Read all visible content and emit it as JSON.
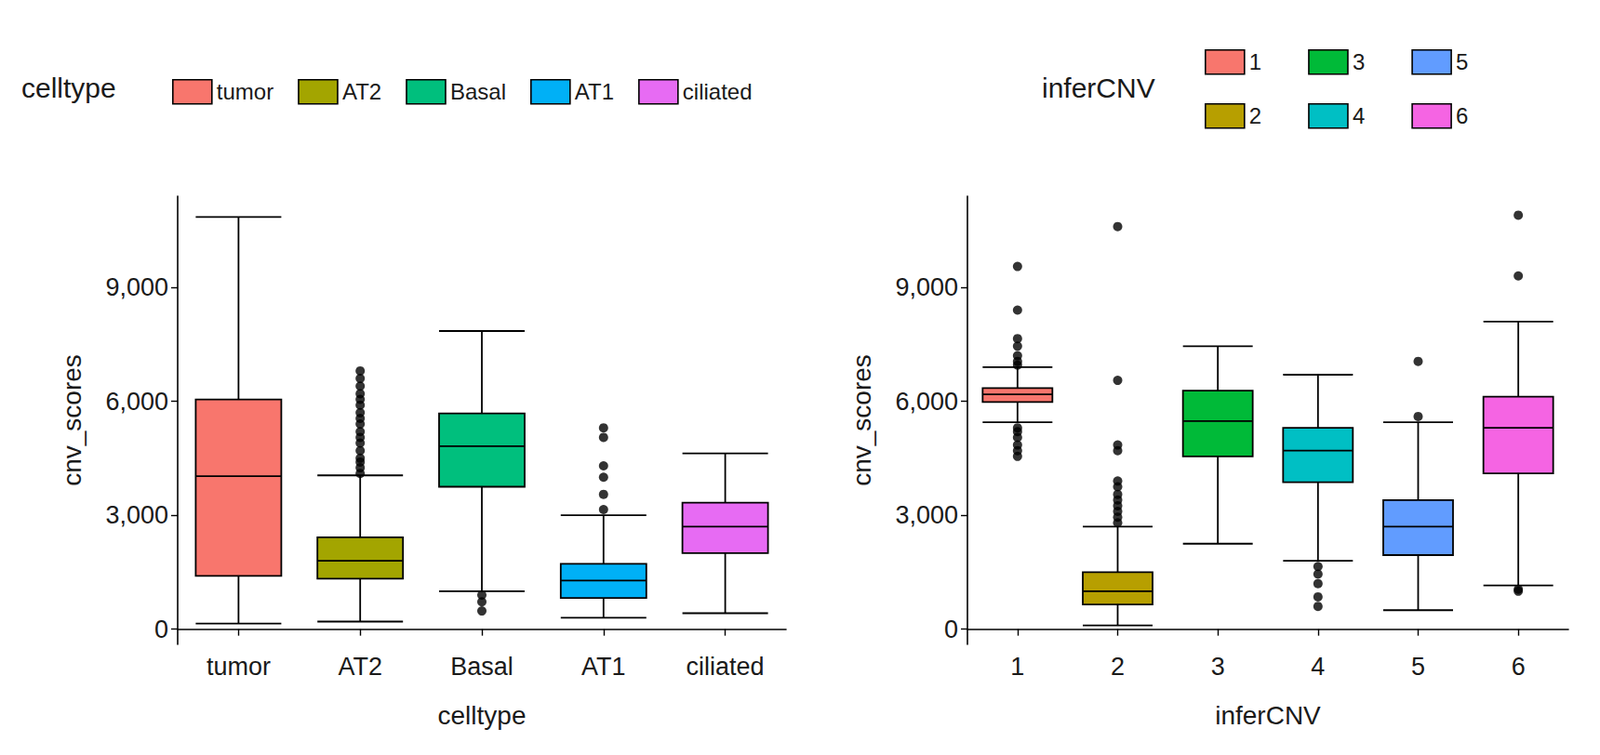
{
  "chart_data": [
    {
      "type": "boxplot",
      "x_label": "celltype",
      "y_label": "cnv_scores",
      "legend_title": "celltype",
      "legend": "top",
      "categories": [
        "tumor",
        "AT2",
        "Basal",
        "AT1",
        "ciliated"
      ],
      "colors": [
        "#F8766D",
        "#A3A500",
        "#00BF7D",
        "#00B0F6",
        "#E76BF3"
      ],
      "values": [
        [
          150,
          1400,
          4030,
          6050,
          10850
        ],
        [
          200,
          1330,
          1800,
          2420,
          4050
        ],
        [
          1000,
          3750,
          4820,
          5680,
          7850
        ],
        [
          300,
          820,
          1280,
          1720,
          3000
        ],
        [
          420,
          2000,
          2700,
          3330,
          4630
        ]
      ],
      "outliers": [
        [],
        [
          4100,
          4250,
          4400,
          4500,
          4700,
          4900,
          5050,
          5200,
          5400,
          5550,
          5700,
          5900,
          6050,
          6200,
          6400,
          6600,
          6800
        ],
        [
          900,
          720,
          480
        ],
        [
          3150,
          3550,
          4000,
          4300,
          5050,
          5300
        ],
        []
      ],
      "ylim": [
        -400,
        11400
      ],
      "yticks": [
        0,
        3000,
        6000,
        9000
      ]
    },
    {
      "type": "boxplot",
      "x_label": "inferCNV",
      "y_label": "cnv_scores",
      "legend_title": "inferCNV",
      "legend": "top",
      "categories": [
        "1",
        "2",
        "3",
        "4",
        "5",
        "6"
      ],
      "colors": [
        "#F8766D",
        "#B79F00",
        "#00BA38",
        "#00BFC4",
        "#619CFF",
        "#F564E3"
      ],
      "values": [
        [
          5450,
          5980,
          6180,
          6350,
          6900
        ],
        [
          100,
          650,
          1000,
          1500,
          2700
        ],
        [
          2250,
          4550,
          5480,
          6280,
          7450
        ],
        [
          1800,
          3870,
          4700,
          5300,
          6700
        ],
        [
          500,
          1950,
          2700,
          3400,
          5450
        ],
        [
          1150,
          4100,
          5300,
          6120,
          8100
        ]
      ],
      "outliers": [
        [
          4550,
          4700,
          4850,
          5050,
          5200,
          5300,
          6950,
          7050,
          7200,
          7450,
          7650,
          8400,
          9550
        ],
        [
          2800,
          2950,
          3100,
          3250,
          3400,
          3550,
          3750,
          3900,
          4700,
          4850,
          6550,
          10600
        ],
        [],
        [
          1650,
          1450,
          1200,
          850,
          600
        ],
        [
          5600,
          7050
        ],
        [
          1050,
          1000,
          9300,
          10900
        ]
      ],
      "ylim": [
        -400,
        11400
      ],
      "yticks": [
        0,
        3000,
        6000,
        9000
      ]
    }
  ]
}
